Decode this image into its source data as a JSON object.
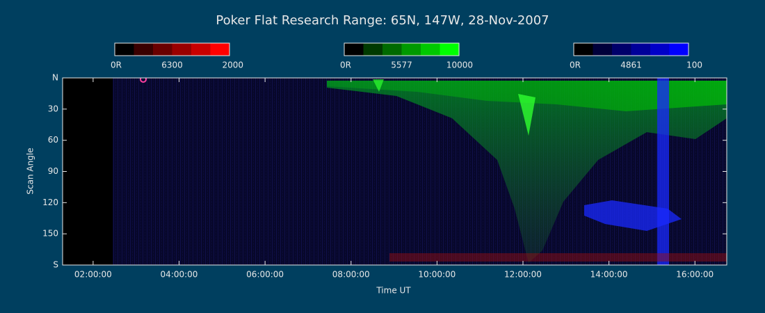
{
  "chart_data": {
    "type": "keogram",
    "title": "Poker Flat Research Range: 65N, 147W, 28-Nov-2007",
    "x_label": "Time UT",
    "y_label": "Scan Angle",
    "xlim": [
      1.29,
      16.74
    ],
    "xticks": [
      {
        "value": 2,
        "label": "02:00:00"
      },
      {
        "value": 4,
        "label": "04:00:00"
      },
      {
        "value": 6,
        "label": "06:00:00"
      },
      {
        "value": 8,
        "label": "08:00:00"
      },
      {
        "value": 10,
        "label": "10:00:00"
      },
      {
        "value": 12,
        "label": "12:00:00"
      },
      {
        "value": 14,
        "label": "14:00:00"
      },
      {
        "value": 16,
        "label": "16:00:00"
      }
    ],
    "ylim": [
      0,
      180
    ],
    "yticks": [
      {
        "value": 0,
        "label": "N"
      },
      30,
      60,
      90,
      120,
      150,
      {
        "value": 180,
        "label": "S"
      }
    ],
    "colorbars": [
      {
        "min_label": "0R",
        "wavelength": "6300",
        "max": 2000,
        "colors": [
          "#000000",
          "#3a0000",
          "#6a0000",
          "#990000",
          "#c80000",
          "#ff0000"
        ]
      },
      {
        "min_label": "0R",
        "wavelength": "5577",
        "max": 10000,
        "colors": [
          "#000000",
          "#003a00",
          "#006a00",
          "#009900",
          "#00c800",
          "#00ff00"
        ]
      },
      {
        "min_label": "0R",
        "wavelength": "4861",
        "max": 100,
        "colors": [
          "#000000",
          "#00003a",
          "#00006a",
          "#000099",
          "#0000c8",
          "#0000ff"
        ]
      }
    ]
  }
}
